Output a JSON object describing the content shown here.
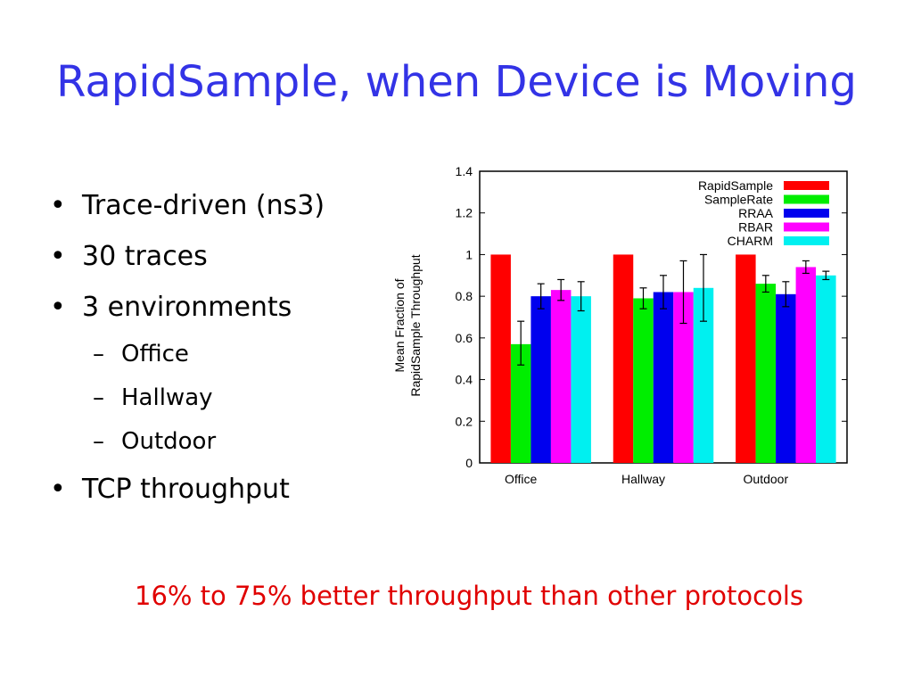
{
  "slide": {
    "title": "RapidSample, when Device is Moving",
    "bullets": [
      {
        "text": "Trace-driven (ns3)",
        "level": 1
      },
      {
        "text": "30 traces",
        "level": 1
      },
      {
        "text": "3 environments",
        "level": 1
      },
      {
        "text": "Office",
        "level": 2
      },
      {
        "text": "Hallway",
        "level": 2
      },
      {
        "text": "Outdoor",
        "level": 2
      },
      {
        "text": "TCP throughput",
        "level": 1
      }
    ],
    "note": "16% to 75% better throughput than other protocols",
    "colors": {
      "title": "#3333e6",
      "note": "#e00000"
    }
  },
  "chart_data": {
    "type": "bar",
    "ylabel_line1": "Mean Fraction of",
    "ylabel_line2": "RapidSample Throughput",
    "ylim": [
      0,
      1.4
    ],
    "yticks": [
      "0",
      "0.2",
      "0.4",
      "0.6",
      "0.8",
      "1",
      "1.2",
      "1.4"
    ],
    "categories": [
      "Office",
      "Hallway",
      "Outdoor"
    ],
    "legend_position": "top-right",
    "series": [
      {
        "name": "RapidSample",
        "color": "#ff0000",
        "values": [
          1.0,
          1.0,
          1.0
        ],
        "errors": [
          null,
          null,
          null
        ]
      },
      {
        "name": "SampleRate",
        "color": "#00ee00",
        "values": [
          0.57,
          0.79,
          0.86
        ],
        "errors": [
          [
            0.47,
            0.68
          ],
          [
            0.74,
            0.84
          ],
          [
            0.82,
            0.9
          ]
        ]
      },
      {
        "name": "RRAA",
        "color": "#0000ee",
        "values": [
          0.8,
          0.82,
          0.81
        ],
        "errors": [
          [
            0.74,
            0.86
          ],
          [
            0.74,
            0.9
          ],
          [
            0.75,
            0.87
          ]
        ]
      },
      {
        "name": "RBAR",
        "color": "#ff00ff",
        "values": [
          0.83,
          0.82,
          0.94
        ],
        "errors": [
          [
            0.78,
            0.88
          ],
          [
            0.67,
            0.97
          ],
          [
            0.91,
            0.97
          ]
        ]
      },
      {
        "name": "CHARM",
        "color": "#00f0f0",
        "values": [
          0.8,
          0.84,
          0.9
        ],
        "errors": [
          [
            0.73,
            0.87
          ],
          [
            0.68,
            1.0
          ],
          [
            0.88,
            0.92
          ]
        ]
      }
    ]
  }
}
